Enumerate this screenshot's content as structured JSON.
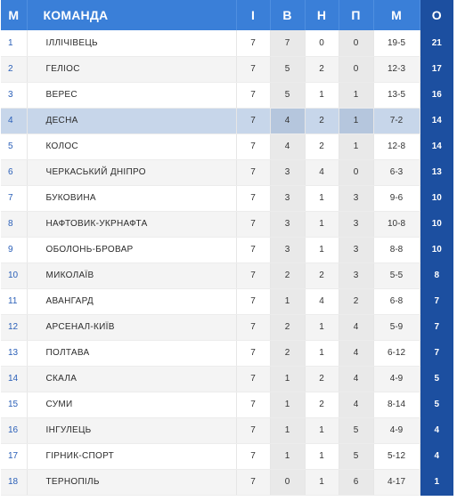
{
  "table": {
    "headers": {
      "pos": "М",
      "team": "КОМАНДА",
      "games": "І",
      "wins": "В",
      "draws": "Н",
      "losses": "П",
      "goals": "М",
      "points": "О"
    },
    "rows": [
      {
        "pos": "1",
        "team": "ІЛЛІЧІВЕЦЬ",
        "games": "7",
        "wins": "7",
        "draws": "0",
        "losses": "0",
        "goals": "19-5",
        "points": "21"
      },
      {
        "pos": "2",
        "team": "ГЕЛІОС",
        "games": "7",
        "wins": "5",
        "draws": "2",
        "losses": "0",
        "goals": "12-3",
        "points": "17"
      },
      {
        "pos": "3",
        "team": "ВЕРЕС",
        "games": "7",
        "wins": "5",
        "draws": "1",
        "losses": "1",
        "goals": "13-5",
        "points": "16"
      },
      {
        "pos": "4",
        "team": "ДЕСНА",
        "games": "7",
        "wins": "4",
        "draws": "2",
        "losses": "1",
        "goals": "7-2",
        "points": "14",
        "highlighted": true
      },
      {
        "pos": "5",
        "team": "КОЛОС",
        "games": "7",
        "wins": "4",
        "draws": "2",
        "losses": "1",
        "goals": "12-8",
        "points": "14"
      },
      {
        "pos": "6",
        "team": "ЧЕРКАСЬКИЙ ДНІПРО",
        "games": "7",
        "wins": "3",
        "draws": "4",
        "losses": "0",
        "goals": "6-3",
        "points": "13"
      },
      {
        "pos": "7",
        "team": "БУКОВИНА",
        "games": "7",
        "wins": "3",
        "draws": "1",
        "losses": "3",
        "goals": "9-6",
        "points": "10"
      },
      {
        "pos": "8",
        "team": "НАФТОВИК-УКРНАФТА",
        "games": "7",
        "wins": "3",
        "draws": "1",
        "losses": "3",
        "goals": "10-8",
        "points": "10"
      },
      {
        "pos": "9",
        "team": "ОБОЛОНЬ-БРОВАР",
        "games": "7",
        "wins": "3",
        "draws": "1",
        "losses": "3",
        "goals": "8-8",
        "points": "10"
      },
      {
        "pos": "10",
        "team": "МИКОЛАЇВ",
        "games": "7",
        "wins": "2",
        "draws": "2",
        "losses": "3",
        "goals": "5-5",
        "points": "8"
      },
      {
        "pos": "11",
        "team": "АВАНГАРД",
        "games": "7",
        "wins": "1",
        "draws": "4",
        "losses": "2",
        "goals": "6-8",
        "points": "7"
      },
      {
        "pos": "12",
        "team": "АРСЕНАЛ-КИЇВ",
        "games": "7",
        "wins": "2",
        "draws": "1",
        "losses": "4",
        "goals": "5-9",
        "points": "7"
      },
      {
        "pos": "13",
        "team": "ПОЛТАВА",
        "games": "7",
        "wins": "2",
        "draws": "1",
        "losses": "4",
        "goals": "6-12",
        "points": "7"
      },
      {
        "pos": "14",
        "team": "СКАЛА",
        "games": "7",
        "wins": "1",
        "draws": "2",
        "losses": "4",
        "goals": "4-9",
        "points": "5"
      },
      {
        "pos": "15",
        "team": "СУМИ",
        "games": "7",
        "wins": "1",
        "draws": "2",
        "losses": "4",
        "goals": "8-14",
        "points": "5"
      },
      {
        "pos": "16",
        "team": "ІНГУЛЕЦЬ",
        "games": "7",
        "wins": "1",
        "draws": "1",
        "losses": "5",
        "goals": "4-9",
        "points": "4"
      },
      {
        "pos": "17",
        "team": "ГІРНИК-СПОРТ",
        "games": "7",
        "wins": "1",
        "draws": "1",
        "losses": "5",
        "goals": "5-12",
        "points": "4"
      },
      {
        "pos": "18",
        "team": "ТЕРНОПІЛЬ",
        "games": "7",
        "wins": "0",
        "draws": "1",
        "losses": "6",
        "goals": "4-17",
        "points": "1"
      }
    ]
  },
  "colors": {
    "header_bg": "#3a7fd8",
    "points_bg": "#1c4fa0",
    "highlight_row": "#c7d6ea"
  }
}
